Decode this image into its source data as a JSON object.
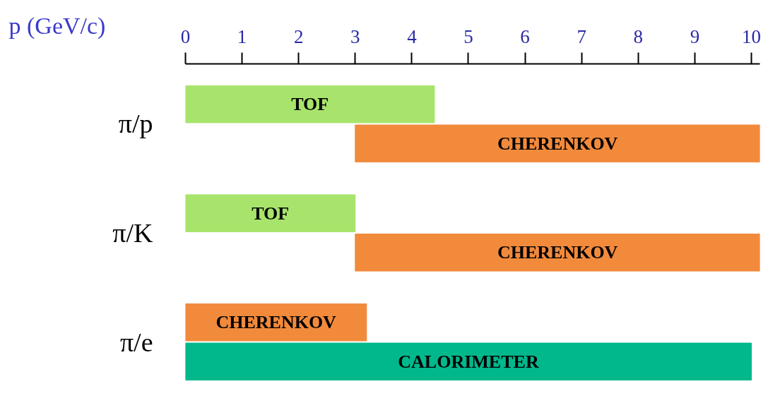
{
  "chart_data": {
    "type": "bar",
    "orientation": "horizontal",
    "xlabel": "p (GeV/c)",
    "categories": [
      "π/p",
      "π/K",
      "π/e"
    ],
    "xlim": [
      0,
      10.15
    ],
    "xticks": [
      0,
      1,
      2,
      3,
      4,
      5,
      6,
      7,
      8,
      9,
      10
    ],
    "grid": false,
    "series": [
      {
        "base": [
          0,
          0,
          0
        ],
        "values": [
          4.4,
          3,
          3.2
        ],
        "colors": [
          "#a8e46c",
          "#a8e46c",
          "#f28a3c"
        ],
        "value_labels": [
          "TOF",
          "TOF",
          "CHERENKOV"
        ]
      },
      {
        "base": [
          3,
          3,
          0
        ],
        "values": [
          7.15,
          7.15,
          10
        ],
        "colors": [
          "#f28a3c",
          "#f28a3c",
          "#00b88c"
        ],
        "value_labels": [
          "CHERENKOV",
          "CHERENKOV",
          "CALORIMETER"
        ]
      }
    ]
  }
}
